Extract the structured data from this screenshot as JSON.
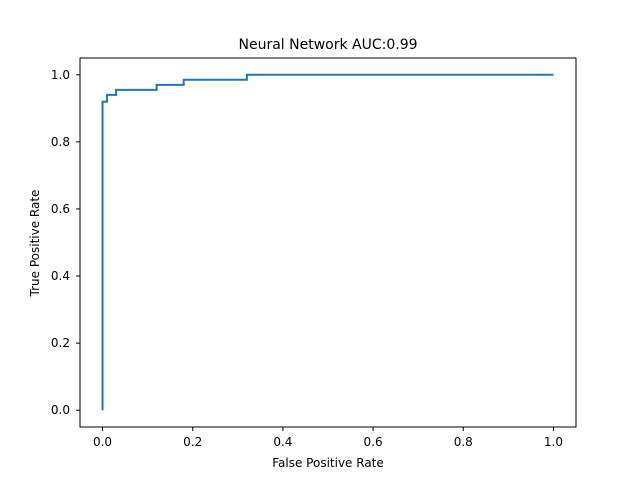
{
  "chart_data": {
    "type": "line",
    "title": "Neural Network AUC:0.99",
    "xlabel": "False Positive Rate",
    "ylabel": "True Positive Rate",
    "xlim": [
      -0.05,
      1.05
    ],
    "ylim": [
      -0.05,
      1.05
    ],
    "xticks": [
      0.0,
      0.2,
      0.4,
      0.6,
      0.8,
      1.0
    ],
    "yticks": [
      0.0,
      0.2,
      0.4,
      0.6,
      0.8,
      1.0
    ],
    "xtick_labels": [
      "0.0",
      "0.2",
      "0.4",
      "0.6",
      "0.8",
      "1.0"
    ],
    "ytick_labels": [
      "0.0",
      "0.2",
      "0.4",
      "0.6",
      "0.8",
      "1.0"
    ],
    "grid": false,
    "legend": false,
    "line_color": "#1f77b4",
    "series": [
      {
        "x": [
          0.0,
          0.0,
          0.0,
          0.0,
          0.0,
          0.01,
          0.01,
          0.01,
          0.03,
          0.03,
          0.12,
          0.12,
          0.18,
          0.18,
          0.32,
          0.32,
          1.0
        ],
        "y": [
          0.0,
          0.9,
          0.92,
          0.92,
          0.92,
          0.92,
          0.94,
          0.94,
          0.94,
          0.955,
          0.955,
          0.97,
          0.97,
          0.985,
          0.985,
          1.0,
          1.0
        ]
      }
    ]
  }
}
